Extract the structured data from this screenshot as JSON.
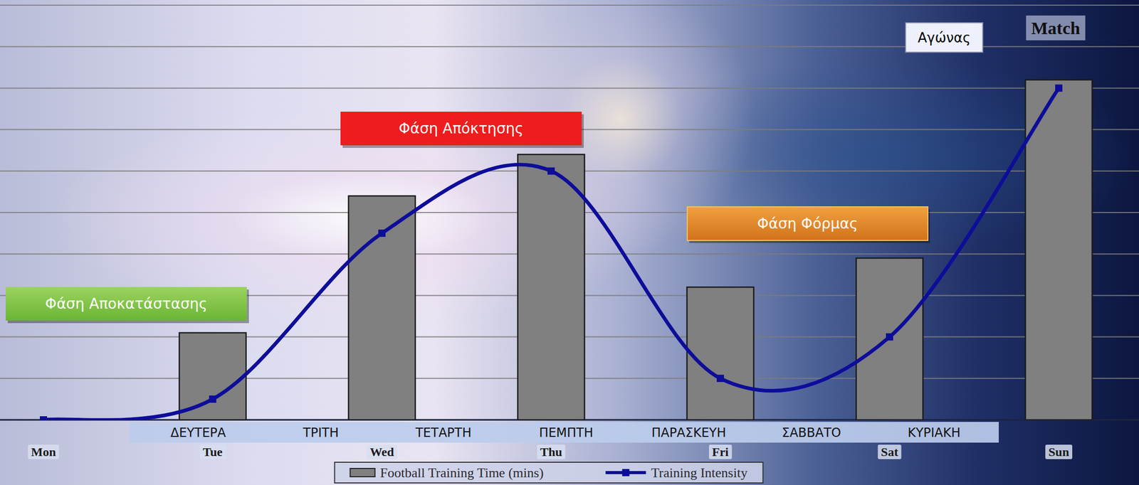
{
  "chart_data": {
    "type": "bar",
    "categories": [
      "Mon",
      "Tue",
      "Wed",
      "Thu",
      "Fri",
      "Sat",
      "Sun"
    ],
    "series": [
      {
        "name": "Football Training Time (mins)",
        "type": "bar",
        "color": "#808080",
        "values": [
          null,
          2.1,
          5.4,
          6.4,
          3.2,
          3.9,
          8.2
        ]
      },
      {
        "name": "Training Intensity",
        "type": "line",
        "color": "#0d0d9a",
        "marker": "square",
        "values": [
          0,
          0.5,
          4.5,
          6.0,
          1.0,
          2.0,
          8.0
        ]
      }
    ],
    "ylim": [
      0,
      10
    ],
    "yticks": [
      0,
      1,
      2,
      3,
      4,
      5,
      6,
      7,
      8,
      9,
      10
    ],
    "grid": true,
    "tick_labels": "x",
    "legend": "bottom",
    "annotations": [
      "Φάση Αποκατάστασης",
      "Φάση Απόκτησης",
      "Φάση Φόρμας",
      "Αγώνας",
      "Match"
    ],
    "day_labels": [
      "ΔΕΥΤΕΡΑ",
      "ΤΡΙΤΗ",
      "ΤΕΤΑΡΤΗ",
      "ΠΕΜΠΤΗ",
      "ΠΑΡΑΣΚΕΥΗ",
      "ΣΑΒΒΑΤΟ",
      "ΚΥΡΙΑΚΗ"
    ]
  }
}
